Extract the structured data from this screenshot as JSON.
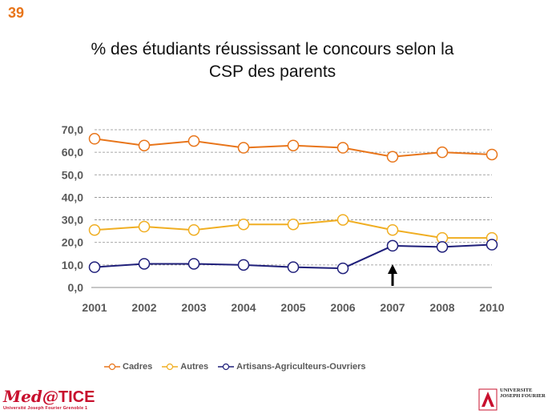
{
  "slide_number": "39",
  "title_line1": "% des étudiants réussissant le concours selon la",
  "title_line2": "CSP des parents",
  "chart_data": {
    "type": "line",
    "categories": [
      "2001",
      "2002",
      "2003",
      "2004",
      "2005",
      "2006",
      "2007",
      "2008",
      "2010"
    ],
    "series": [
      {
        "name": "Cadres",
        "color": "#e8751a",
        "values": [
          66.0,
          63.0,
          65.0,
          62.0,
          63.0,
          62.0,
          58.0,
          60.0,
          59.0
        ]
      },
      {
        "name": "Autres",
        "color": "#f0ae22",
        "values": [
          25.5,
          27.0,
          25.5,
          28.0,
          28.0,
          30.0,
          25.5,
          22.0,
          22.0
        ]
      },
      {
        "name": "Artisans-Agriculteurs-Ouvriers",
        "color": "#1f1f7a",
        "values": [
          9.0,
          10.5,
          10.5,
          10.0,
          9.0,
          8.5,
          18.5,
          18.0,
          19.0
        ]
      }
    ],
    "yticks": [
      "0,0",
      "10,0",
      "20,0",
      "30,0",
      "40,0",
      "50,0",
      "60,0",
      "70,0"
    ],
    "ylim": [
      0,
      70
    ],
    "grid": true,
    "legend_position": "bottom",
    "annotation": {
      "type": "arrow",
      "category": "2007",
      "direction": "up"
    }
  },
  "logos": {
    "left_brand_prefix": "Med",
    "left_brand_at": "@",
    "left_brand_suffix": "TICE",
    "left_subtitle": "Université Joseph Fourier Grenoble 1",
    "right_name": "UNIVERSITE JOSEPH FOURIER"
  }
}
